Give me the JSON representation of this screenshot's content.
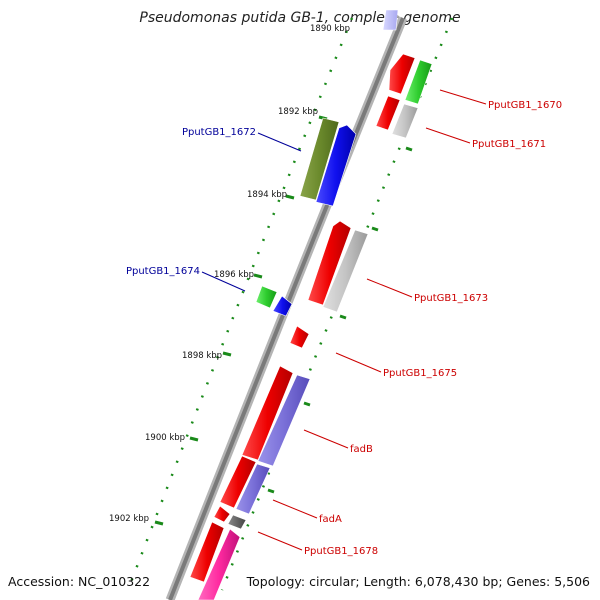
{
  "title": "Pseudomonas putida GB-1, complete genome",
  "footer": {
    "accession": "Accession: NC_010322",
    "summary": "Topology: circular; Length: 6,078,430 bp; Genes: 5,506"
  },
  "scale": {
    "top_partial_label": "1890 kbp",
    "labels": [
      "1892 kbp",
      "1894 kbp",
      "1896 kbp",
      "1898 kbp",
      "1900 kbp",
      "1902 kbp"
    ]
  },
  "colors": {
    "forward_label": "#cc0000",
    "reverse_label": "#000099",
    "backbone": "#808080",
    "tick_green": "#1a8a1a"
  },
  "genes": [
    {
      "name": "PputGB1_1670",
      "strand": "forward"
    },
    {
      "name": "PputGB1_1671",
      "strand": "forward"
    },
    {
      "name": "PputGB1_1672",
      "strand": "reverse"
    },
    {
      "name": "PputGB1_1673",
      "strand": "forward"
    },
    {
      "name": "PputGB1_1674",
      "strand": "reverse"
    },
    {
      "name": "PputGB1_1675",
      "strand": "forward"
    },
    {
      "name": "fadB",
      "strand": "forward"
    },
    {
      "name": "fadA",
      "strand": "forward"
    },
    {
      "name": "PputGB1_1678",
      "strand": "forward"
    }
  ]
}
